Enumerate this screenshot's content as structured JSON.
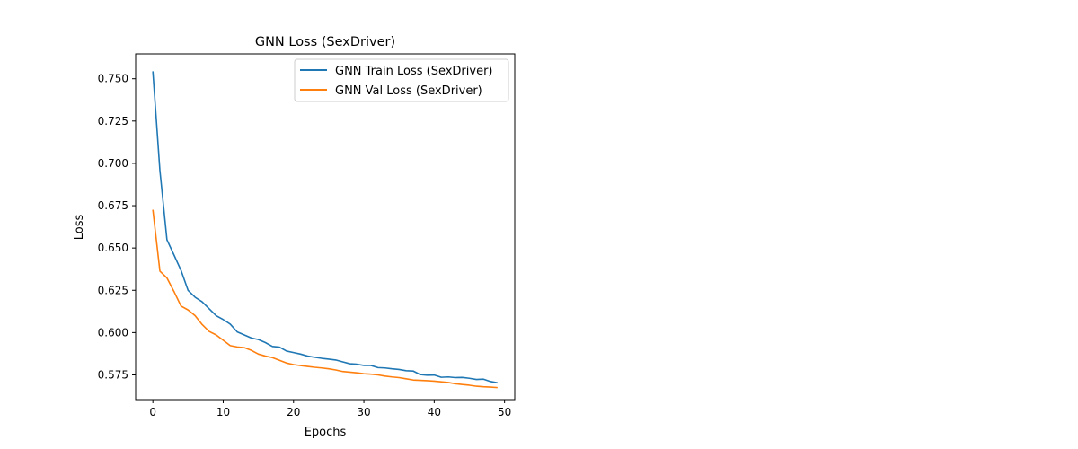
{
  "chart_data": {
    "type": "line",
    "title": "GNN Loss (SexDriver)",
    "xlabel": "Epochs",
    "ylabel": "Loss",
    "xlim": [
      -2.45,
      51.45
    ],
    "ylim": [
      0.5604,
      0.7647
    ],
    "x_ticks": [
      0,
      10,
      20,
      30,
      40,
      50
    ],
    "x_tick_labels": [
      "0",
      "10",
      "20",
      "30",
      "40",
      "50"
    ],
    "y_ticks": [
      0.575,
      0.6,
      0.625,
      0.65,
      0.675,
      0.7,
      0.725,
      0.75
    ],
    "y_tick_labels": [
      "0.575",
      "0.600",
      "0.625",
      "0.650",
      "0.675",
      "0.700",
      "0.725",
      "0.750"
    ],
    "grid": false,
    "legend_position": "top-right",
    "x": [
      0,
      1,
      2,
      3,
      4,
      5,
      6,
      7,
      8,
      9,
      10,
      11,
      12,
      13,
      14,
      15,
      16,
      17,
      18,
      19,
      20,
      21,
      22,
      23,
      24,
      25,
      26,
      27,
      28,
      29,
      30,
      31,
      32,
      33,
      34,
      35,
      36,
      37,
      38,
      39,
      40,
      41,
      42,
      43,
      44,
      45,
      46,
      47,
      48,
      49
    ],
    "series": [
      {
        "name": "GNN Train Loss (SexDriver)",
        "color": "#1f77b4",
        "values": [
          0.7544,
          0.6958,
          0.6549,
          0.6459,
          0.6368,
          0.625,
          0.6209,
          0.6182,
          0.6141,
          0.61,
          0.6077,
          0.605,
          0.6004,
          0.5986,
          0.5968,
          0.5959,
          0.5941,
          0.5918,
          0.5914,
          0.5891,
          0.5882,
          0.5873,
          0.5861,
          0.5854,
          0.5848,
          0.5843,
          0.5838,
          0.5827,
          0.5816,
          0.5813,
          0.5806,
          0.5806,
          0.5793,
          0.5791,
          0.5786,
          0.5782,
          0.5775,
          0.5773,
          0.5752,
          0.5748,
          0.5749,
          0.5736,
          0.5738,
          0.5734,
          0.5735,
          0.573,
          0.5723,
          0.5725,
          0.5711,
          0.5703
        ]
      },
      {
        "name": "GNN Val Loss (SexDriver)",
        "color": "#ff7f0e",
        "values": [
          0.6726,
          0.6363,
          0.6323,
          0.6243,
          0.6157,
          0.6134,
          0.61,
          0.6048,
          0.6007,
          0.5986,
          0.5955,
          0.5923,
          0.5915,
          0.5911,
          0.5895,
          0.5873,
          0.5861,
          0.5852,
          0.5836,
          0.582,
          0.5811,
          0.5805,
          0.58,
          0.5795,
          0.5791,
          0.5786,
          0.5779,
          0.577,
          0.5766,
          0.5762,
          0.5757,
          0.5754,
          0.575,
          0.5743,
          0.5738,
          0.5734,
          0.5727,
          0.572,
          0.5718,
          0.5716,
          0.5713,
          0.5709,
          0.5705,
          0.5698,
          0.5693,
          0.5689,
          0.5683,
          0.568,
          0.5678,
          0.5675
        ]
      }
    ]
  }
}
